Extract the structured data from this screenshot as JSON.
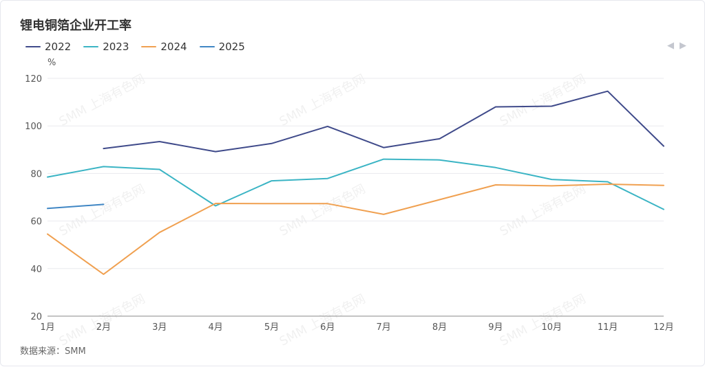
{
  "title": "锂电铜箔企业开工率",
  "source": "数据来源：SMM",
  "watermark": "SMM 上海有色网",
  "pager": {
    "prev_icon": "◀",
    "next_icon": "▶"
  },
  "chart_data": {
    "type": "line",
    "ylabel": "%",
    "ylim": [
      20,
      120
    ],
    "yticks": [
      20,
      40,
      60,
      80,
      100,
      120
    ],
    "categories": [
      "1月",
      "2月",
      "3月",
      "4月",
      "5月",
      "6月",
      "7月",
      "8月",
      "9月",
      "10月",
      "11月",
      "12月"
    ],
    "grid": true,
    "legend_position": "top-left",
    "series": [
      {
        "name": "2022",
        "color": "#3f4a8a",
        "values": [
          null,
          90.5,
          93.4,
          89.2,
          92.6,
          99.8,
          90.9,
          94.6,
          108.0,
          108.3,
          114.6,
          91.5
        ]
      },
      {
        "name": "2023",
        "color": "#3ab4c4",
        "values": [
          78.5,
          82.9,
          81.7,
          66.4,
          76.9,
          77.9,
          86.0,
          85.7,
          82.5,
          77.5,
          76.5,
          64.9
        ]
      },
      {
        "name": "2024",
        "color": "#f0a050",
        "values": [
          54.5,
          37.6,
          55.2,
          67.4,
          67.3,
          67.3,
          62.8,
          69.0,
          75.2,
          74.8,
          75.5,
          75.0
        ]
      },
      {
        "name": "2025",
        "color": "#3f86c4",
        "values": [
          65.3,
          67.0,
          null,
          null,
          null,
          null,
          null,
          null,
          null,
          null,
          null,
          null
        ]
      }
    ]
  }
}
